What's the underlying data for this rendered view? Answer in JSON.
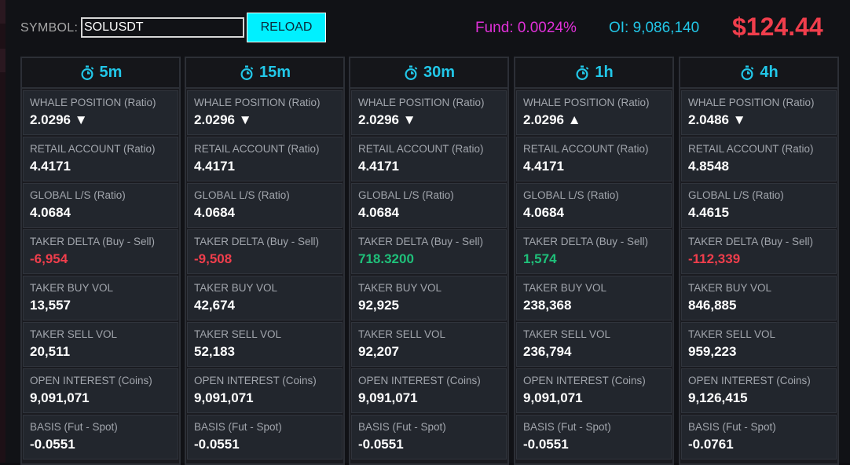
{
  "colors": {
    "accent": "#22c7e8",
    "fund": "#e030d8",
    "price": "#f03e4c",
    "negative": "#f03e4c",
    "positive": "#1fc07a",
    "button": "#00f0ff"
  },
  "header": {
    "symbol_label": "SYMBOL:",
    "symbol_value": "SOLUSDT",
    "reload_label": "RELOAD",
    "fund": "Fund: 0.0024%",
    "oi": "OI: 9,086,140",
    "price": "$124.44"
  },
  "labels": {
    "whale": "WHALE POSITION (Ratio)",
    "retail": "RETAIL ACCOUNT (Ratio)",
    "global": "GLOBAL L/S (Ratio)",
    "taker_delta": "TAKER DELTA (Buy - Sell)",
    "taker_buy": "TAKER BUY VOL",
    "taker_sell": "TAKER SELL VOL",
    "open_interest": "OPEN INTEREST (Coins)",
    "basis": "BASIS (Fut - Spot)"
  },
  "timeframes": [
    {
      "label": "5m",
      "whale": "2.0296 ▼",
      "retail": "4.4171",
      "global": "4.0684",
      "taker_delta": "-6,954",
      "delta_sign": "neg",
      "taker_buy": "13,557",
      "taker_sell": "20,511",
      "open_interest": "9,091,071",
      "basis": "-0.0551"
    },
    {
      "label": "15m",
      "whale": "2.0296 ▼",
      "retail": "4.4171",
      "global": "4.0684",
      "taker_delta": "-9,508",
      "delta_sign": "neg",
      "taker_buy": "42,674",
      "taker_sell": "52,183",
      "open_interest": "9,091,071",
      "basis": "-0.0551"
    },
    {
      "label": "30m",
      "whale": "2.0296 ▼",
      "retail": "4.4171",
      "global": "4.0684",
      "taker_delta": "718.3200",
      "delta_sign": "pos",
      "taker_buy": "92,925",
      "taker_sell": "92,207",
      "open_interest": "9,091,071",
      "basis": "-0.0551"
    },
    {
      "label": "1h",
      "whale": "2.0296 ▲",
      "retail": "4.4171",
      "global": "4.0684",
      "taker_delta": "1,574",
      "delta_sign": "pos",
      "taker_buy": "238,368",
      "taker_sell": "236,794",
      "open_interest": "9,091,071",
      "basis": "-0.0551"
    },
    {
      "label": "4h",
      "whale": "2.0486 ▼",
      "retail": "4.8548",
      "global": "4.4615",
      "taker_delta": "-112,339",
      "delta_sign": "neg",
      "taker_buy": "846,885",
      "taker_sell": "959,223",
      "open_interest": "9,126,415",
      "basis": "-0.0761"
    }
  ]
}
